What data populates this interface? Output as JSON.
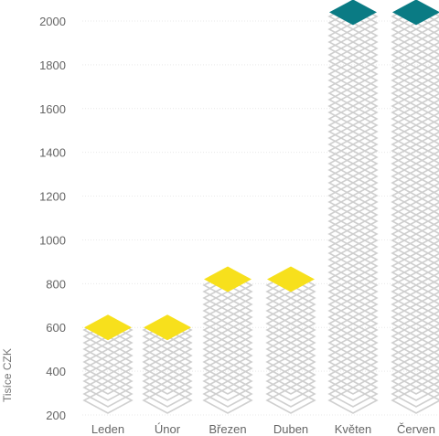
{
  "chart_data": {
    "type": "bar",
    "title": "",
    "xlabel": "",
    "ylabel": "Tisíce CZK",
    "ylim": [
      200,
      2000
    ],
    "yticks": [
      200,
      400,
      600,
      800,
      1000,
      1200,
      1400,
      1600,
      1800,
      2000
    ],
    "grid": true,
    "categories": [
      "Leden",
      "Únor",
      "Březen",
      "Duben",
      "Květen",
      "Červen"
    ],
    "values": [
      600,
      600,
      820,
      820,
      2040,
      2040
    ],
    "colors": {
      "low": "#f7e01c",
      "high": "#0a7b84",
      "stack_outline": "#cfcfcf"
    },
    "bar_top_colors": [
      "low",
      "low",
      "low",
      "low",
      "high",
      "high"
    ]
  }
}
